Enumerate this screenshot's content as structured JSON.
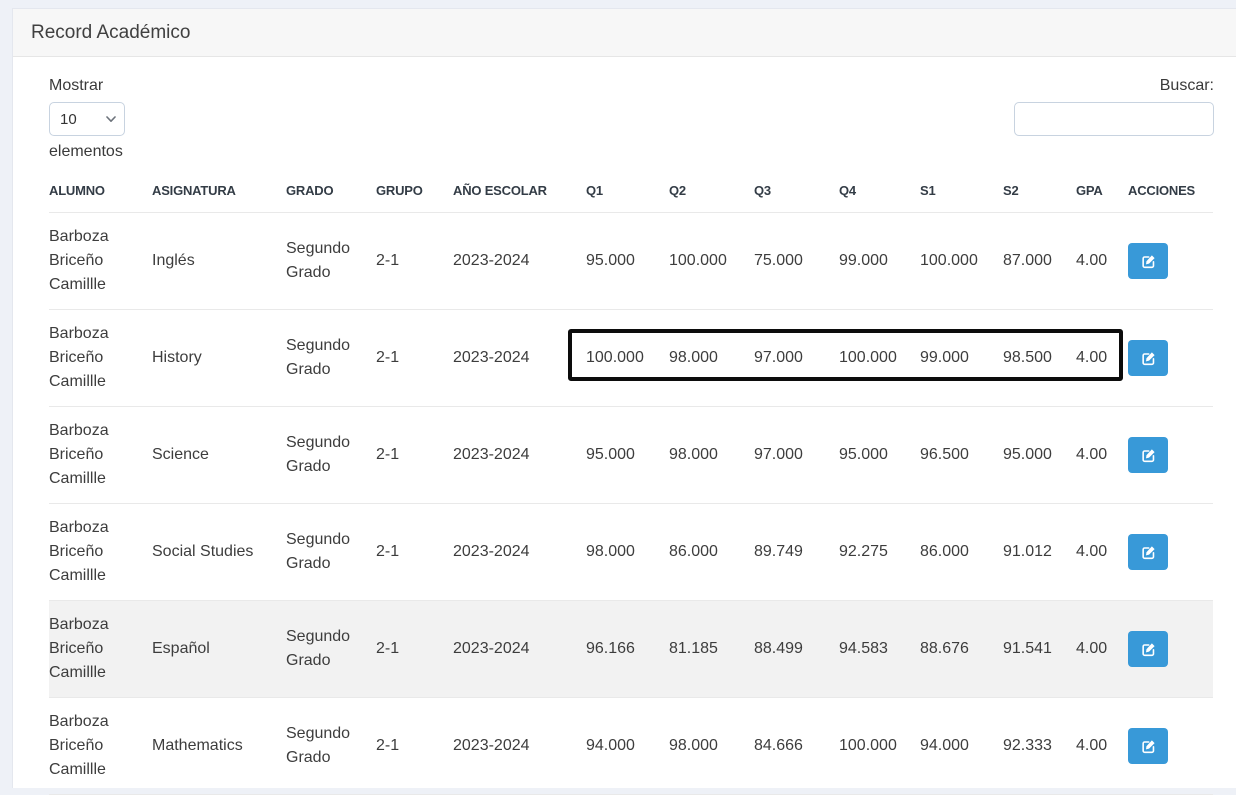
{
  "panel": {
    "title": "Record Académico"
  },
  "controls": {
    "length_label_before": "Mostrar",
    "length_value": "10",
    "length_label_after": "elementos",
    "search_label": "Buscar:",
    "search_value": ""
  },
  "table": {
    "columns": [
      "ALUMNO",
      "ASIGNATURA",
      "GRADO",
      "GRUPO",
      "AÑO ESCOLAR",
      "Q1",
      "Q2",
      "Q3",
      "Q4",
      "S1",
      "S2",
      "GPA",
      "ACCIONES"
    ],
    "rows": [
      {
        "alumno": "Barboza Briceño Camillle",
        "asignatura": "Inglés",
        "grado": "Segundo Grado",
        "grupo": "2-1",
        "anio_escolar": "2023-2024",
        "q1": "95.000",
        "q2": "100.000",
        "q3": "75.000",
        "q4": "99.000",
        "s1": "100.000",
        "s2": "87.000",
        "gpa": "4.00",
        "shaded": false,
        "highlighted": false
      },
      {
        "alumno": "Barboza Briceño Camillle",
        "asignatura": "History",
        "grado": "Segundo Grado",
        "grupo": "2-1",
        "anio_escolar": "2023-2024",
        "q1": "100.000",
        "q2": "98.000",
        "q3": "97.000",
        "q4": "100.000",
        "s1": "99.000",
        "s2": "98.500",
        "gpa": "4.00",
        "shaded": false,
        "highlighted": true
      },
      {
        "alumno": "Barboza Briceño Camillle",
        "asignatura": "Science",
        "grado": "Segundo Grado",
        "grupo": "2-1",
        "anio_escolar": "2023-2024",
        "q1": "95.000",
        "q2": "98.000",
        "q3": "97.000",
        "q4": "95.000",
        "s1": "96.500",
        "s2": "95.000",
        "gpa": "4.00",
        "shaded": false,
        "highlighted": false
      },
      {
        "alumno": "Barboza Briceño Camillle",
        "asignatura": "Social Studies",
        "grado": "Segundo Grado",
        "grupo": "2-1",
        "anio_escolar": "2023-2024",
        "q1": "98.000",
        "q2": "86.000",
        "q3": "89.749",
        "q4": "92.275",
        "s1": "86.000",
        "s2": "91.012",
        "gpa": "4.00",
        "shaded": false,
        "highlighted": false
      },
      {
        "alumno": "Barboza Briceño Camillle",
        "asignatura": "Español",
        "grado": "Segundo Grado",
        "grupo": "2-1",
        "anio_escolar": "2023-2024",
        "q1": "96.166",
        "q2": "81.185",
        "q3": "88.499",
        "q4": "94.583",
        "s1": "88.676",
        "s2": "91.541",
        "gpa": "4.00",
        "shaded": true,
        "highlighted": false
      },
      {
        "alumno": "Barboza Briceño Camillle",
        "asignatura": "Mathematics",
        "grado": "Segundo Grado",
        "grupo": "2-1",
        "anio_escolar": "2023-2024",
        "q1": "94.000",
        "q2": "98.000",
        "q3": "84.666",
        "q4": "100.000",
        "s1": "94.000",
        "s2": "92.333",
        "gpa": "4.00",
        "shaded": false,
        "highlighted": false
      }
    ]
  },
  "annotation": {
    "type": "highlight-box",
    "row_subject": "History",
    "color": "#0c0c0c"
  },
  "colors": {
    "accent_blue": "#3899d8",
    "page_background": "#eef1f7",
    "panel_header_background": "#f7f7f7",
    "stripe": "#f2f2f2"
  },
  "icons": {
    "edit": "edit-icon",
    "select_chevron": "chevron-down-icon"
  }
}
